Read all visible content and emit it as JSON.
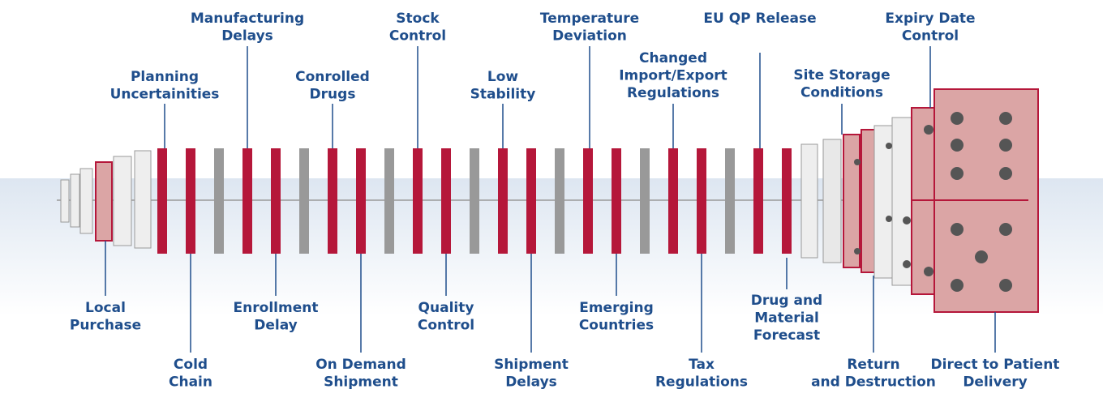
{
  "top_labels": [
    {
      "lines": [
        "Planning",
        "Uncertainities"
      ]
    },
    {
      "lines": [
        "Manufacturing",
        "Delays"
      ]
    },
    {
      "lines": [
        "Conrolled",
        "Drugs"
      ]
    },
    {
      "lines": [
        "Stock",
        "Control"
      ]
    },
    {
      "lines": [
        "Low",
        "Stability"
      ]
    },
    {
      "lines": [
        "Temperature",
        "Deviation"
      ]
    },
    {
      "lines": [
        "Changed",
        "Import/Export",
        "Regulations"
      ]
    },
    {
      "lines": [
        "EU QP Release"
      ]
    },
    {
      "lines": [
        "Site Storage",
        "Conditions"
      ]
    },
    {
      "lines": [
        "Expiry Date",
        "Control"
      ]
    }
  ],
  "bottom_labels": [
    {
      "lines": [
        "Local",
        "Purchase"
      ]
    },
    {
      "lines": [
        "Cold",
        "Chain"
      ]
    },
    {
      "lines": [
        "Enrollment",
        "Delay"
      ]
    },
    {
      "lines": [
        "On Demand",
        "Shipment"
      ]
    },
    {
      "lines": [
        "Quality",
        "Control"
      ]
    },
    {
      "lines": [
        "Shipment",
        "Delays"
      ]
    },
    {
      "lines": [
        "Emerging",
        "Countries"
      ]
    },
    {
      "lines": [
        "Tax",
        "Regulations"
      ]
    },
    {
      "lines": [
        "Drug and",
        "Material",
        "Forecast"
      ]
    },
    {
      "lines": [
        "Return",
        "and Destruction"
      ]
    },
    {
      "lines": [
        "Direct to Patient",
        "Delivery"
      ]
    }
  ]
}
